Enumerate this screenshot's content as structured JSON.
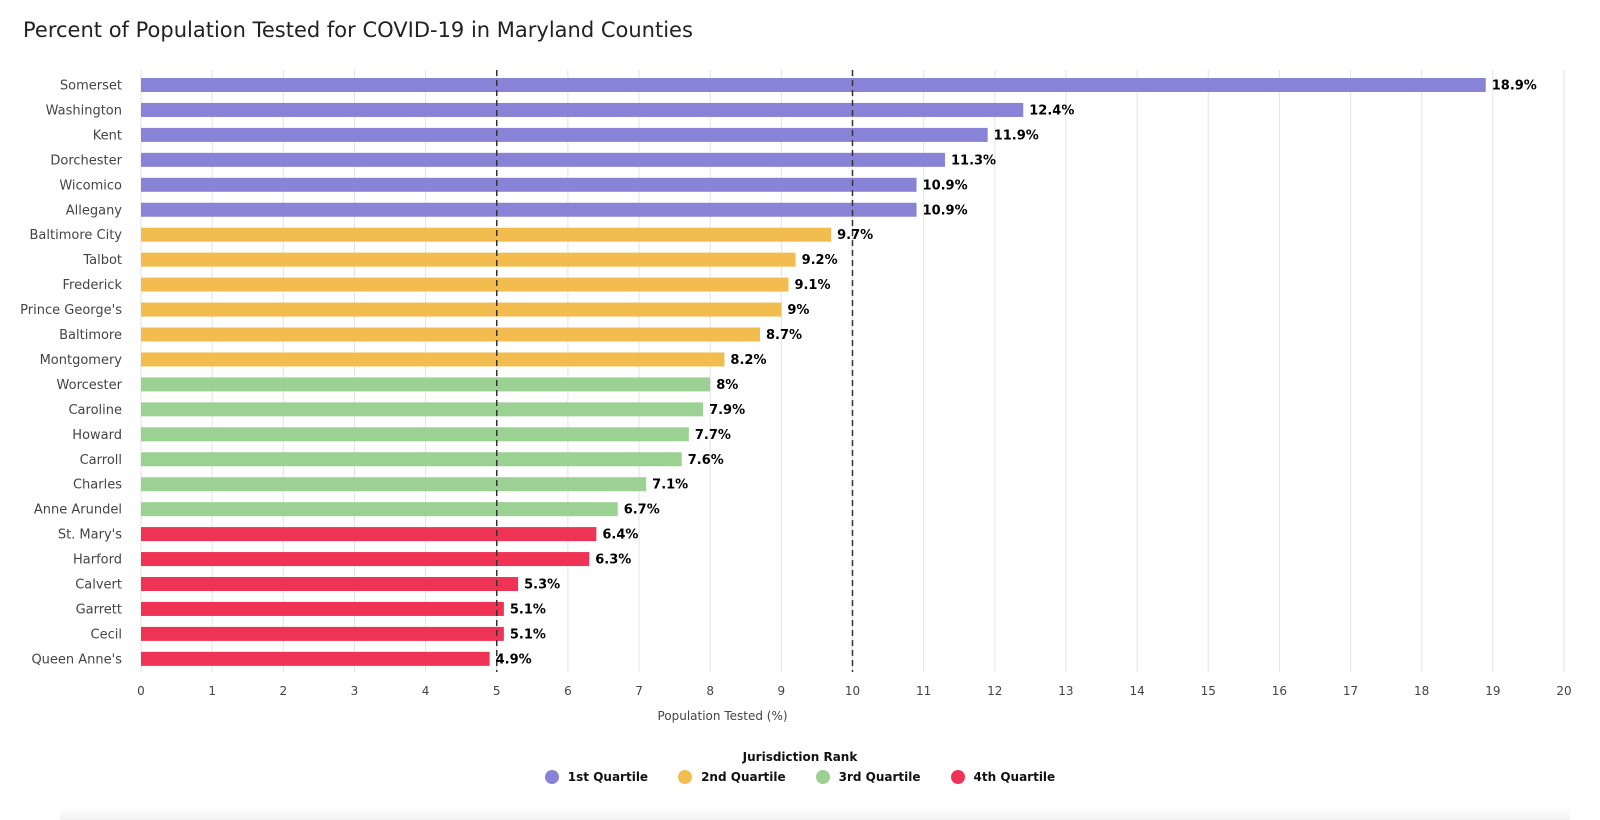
{
  "chart_data": {
    "type": "bar",
    "orientation": "horizontal",
    "title": "Percent of Population Tested for COVID-19 in Maryland Counties",
    "xlabel": "Population Tested (%)",
    "xlim": [
      0,
      20
    ],
    "xticks": [
      0,
      1,
      2,
      3,
      4,
      5,
      6,
      7,
      8,
      9,
      10,
      11,
      12,
      13,
      14,
      15,
      16,
      17,
      18,
      19,
      20
    ],
    "reference_lines": [
      5,
      10
    ],
    "grid": true,
    "value_suffix": "%",
    "legend": {
      "title": "Jurisdiction Rank",
      "placement": "bottom-center",
      "items": [
        {
          "name": "1st Quartile",
          "color": "#8883d6"
        },
        {
          "name": "2nd Quartile",
          "color": "#f2bd4e"
        },
        {
          "name": "3rd Quartile",
          "color": "#9bd293"
        },
        {
          "name": "4th Quartile",
          "color": "#ef3354"
        }
      ]
    },
    "bars": [
      {
        "category": "Somerset",
        "value": 18.9,
        "label": "18.9%",
        "group": 0
      },
      {
        "category": "Washington",
        "value": 12.4,
        "label": "12.4%",
        "group": 0
      },
      {
        "category": "Kent",
        "value": 11.9,
        "label": "11.9%",
        "group": 0
      },
      {
        "category": "Dorchester",
        "value": 11.3,
        "label": "11.3%",
        "group": 0
      },
      {
        "category": "Wicomico",
        "value": 10.9,
        "label": "10.9%",
        "group": 0
      },
      {
        "category": "Allegany",
        "value": 10.9,
        "label": "10.9%",
        "group": 0
      },
      {
        "category": "Baltimore City",
        "value": 9.7,
        "label": "9.7%",
        "group": 1
      },
      {
        "category": "Talbot",
        "value": 9.2,
        "label": "9.2%",
        "group": 1
      },
      {
        "category": "Frederick",
        "value": 9.1,
        "label": "9.1%",
        "group": 1
      },
      {
        "category": "Prince George's",
        "value": 9,
        "label": "9%",
        "group": 1
      },
      {
        "category": "Baltimore",
        "value": 8.7,
        "label": "8.7%",
        "group": 1
      },
      {
        "category": "Montgomery",
        "value": 8.2,
        "label": "8.2%",
        "group": 1
      },
      {
        "category": "Worcester",
        "value": 8,
        "label": "8%",
        "group": 2
      },
      {
        "category": "Caroline",
        "value": 7.9,
        "label": "7.9%",
        "group": 2
      },
      {
        "category": "Howard",
        "value": 7.7,
        "label": "7.7%",
        "group": 2
      },
      {
        "category": "Carroll",
        "value": 7.6,
        "label": "7.6%",
        "group": 2
      },
      {
        "category": "Charles",
        "value": 7.1,
        "label": "7.1%",
        "group": 2
      },
      {
        "category": "Anne Arundel",
        "value": 6.7,
        "label": "6.7%",
        "group": 2
      },
      {
        "category": "St. Mary's",
        "value": 6.4,
        "label": "6.4%",
        "group": 3
      },
      {
        "category": "Harford",
        "value": 6.3,
        "label": "6.3%",
        "group": 3
      },
      {
        "category": "Calvert",
        "value": 5.3,
        "label": "5.3%",
        "group": 3
      },
      {
        "category": "Garrett",
        "value": 5.1,
        "label": "5.1%",
        "group": 3
      },
      {
        "category": "Cecil",
        "value": 5.1,
        "label": "5.1%",
        "group": 3
      },
      {
        "category": "Queen Anne's",
        "value": 4.9,
        "label": "4.9%",
        "group": 3
      }
    ]
  }
}
